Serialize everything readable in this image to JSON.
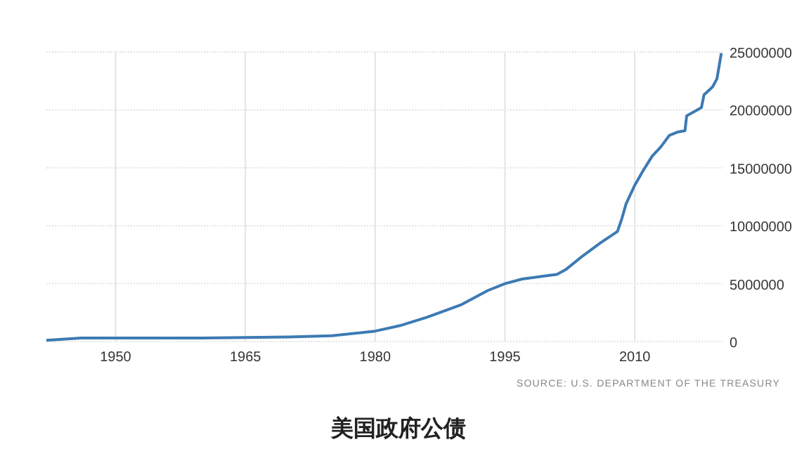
{
  "chart_data": {
    "type": "line",
    "title": "美国政府公债",
    "annotations": [
      "SOURCE: U.S. DEPARTMENT OF THE TREASURY"
    ],
    "series": [
      {
        "color": "#3c7ab4",
        "x": [
          1942,
          1946,
          1950,
          1960,
          1970,
          1975,
          1980,
          1983,
          1986,
          1990,
          1993,
          1995,
          1997,
          2000,
          2001,
          2002,
          2004,
          2006,
          2008,
          2008.5,
          2009,
          2010,
          2011,
          2012,
          2013,
          2014,
          2015,
          2015.8,
          2016,
          2017,
          2017.7,
          2018,
          2019,
          2019.5,
          2020
        ],
        "values": [
          100000,
          300000,
          300000,
          300000,
          400000,
          500000,
          900000,
          1400000,
          2100000,
          3200000,
          4400000,
          5000000,
          5400000,
          5700000,
          5800000,
          6200000,
          7400000,
          8500000,
          9500000,
          10600000,
          11900000,
          13500000,
          14800000,
          16000000,
          16800000,
          17800000,
          18100000,
          18200000,
          19500000,
          19900000,
          20200000,
          21300000,
          22000000,
          22700000,
          24900000
        ]
      }
    ],
    "xlim": [
      1942,
      2020.3
    ],
    "xticks": [
      1950,
      1965,
      1980,
      1995,
      2010
    ],
    "ylim": [
      0,
      25000000
    ],
    "yticks": [
      0,
      5000000,
      10000000,
      15000000,
      20000000,
      25000000
    ],
    "grid": true,
    "line_style": "solid",
    "marker": "none"
  }
}
